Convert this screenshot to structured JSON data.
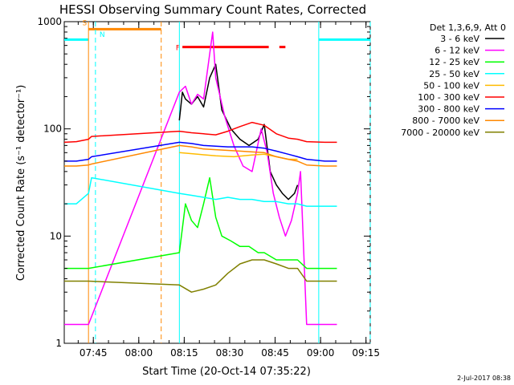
{
  "chart_data": {
    "type": "line",
    "title": "HESSI Observing Summary Count Rates, Corrected",
    "xlabel": "Start Time (20-Oct-14 07:35:22)",
    "ylabel": "Corrected Count Rate (s⁻¹ detector⁻¹)",
    "ylog": true,
    "ylim": [
      1,
      1000
    ],
    "xlim_minutes": [
      0,
      101
    ],
    "x_ticks": [
      {
        "label": "07:45",
        "min": 9.6
      },
      {
        "label": "08:00",
        "min": 24.6
      },
      {
        "label": "08:15",
        "min": 39.6
      },
      {
        "label": "08:30",
        "min": 54.6
      },
      {
        "label": "08:45",
        "min": 69.6
      },
      {
        "label": "09:00",
        "min": 84.6
      },
      {
        "label": "09:15",
        "min": 99.6
      }
    ],
    "y_ticks": [
      {
        "label": "1",
        "value": 1
      },
      {
        "label": "10",
        "value": 10
      },
      {
        "label": "100",
        "value": 100
      },
      {
        "label": "1000",
        "value": 1000
      }
    ],
    "legend_title": "Det 1,3,6,9, Att 0",
    "series": [
      {
        "name": "3 - 6 keV",
        "color": "#000000",
        "points": [
          [
            38,
            120
          ],
          [
            39,
            220
          ],
          [
            40,
            190
          ],
          [
            42,
            170
          ],
          [
            44,
            200
          ],
          [
            46,
            160
          ],
          [
            48,
            300
          ],
          [
            50,
            400
          ],
          [
            52,
            150
          ],
          [
            55,
            100
          ],
          [
            58,
            80
          ],
          [
            61,
            70
          ],
          [
            64,
            80
          ],
          [
            66,
            110
          ],
          [
            68,
            40
          ],
          [
            70,
            30
          ],
          [
            72,
            25
          ],
          [
            74,
            22
          ],
          [
            76,
            25
          ],
          [
            77,
            30
          ]
        ]
      },
      {
        "name": "6 - 12 keV",
        "color": "#ff00ff",
        "points": [
          [
            0,
            1.5
          ],
          [
            8,
            1.5
          ],
          [
            38,
            220
          ],
          [
            40,
            250
          ],
          [
            42,
            170
          ],
          [
            44,
            210
          ],
          [
            46,
            190
          ],
          [
            48,
            500
          ],
          [
            49,
            800
          ],
          [
            50,
            300
          ],
          [
            53,
            130
          ],
          [
            56,
            70
          ],
          [
            59,
            45
          ],
          [
            62,
            40
          ],
          [
            65,
            100
          ],
          [
            67,
            60
          ],
          [
            69,
            25
          ],
          [
            71,
            15
          ],
          [
            73,
            10
          ],
          [
            75,
            14
          ],
          [
            77,
            25
          ],
          [
            78,
            40
          ],
          [
            80,
            1.5
          ],
          [
            90,
            1.5
          ]
        ]
      },
      {
        "name": "12 - 25 keV",
        "color": "#00ff00",
        "points": [
          [
            0,
            5
          ],
          [
            8,
            5
          ],
          [
            38,
            7
          ],
          [
            40,
            20
          ],
          [
            42,
            14
          ],
          [
            44,
            12
          ],
          [
            46,
            20
          ],
          [
            48,
            35
          ],
          [
            50,
            15
          ],
          [
            52,
            10
          ],
          [
            55,
            9
          ],
          [
            58,
            8
          ],
          [
            61,
            8
          ],
          [
            64,
            7
          ],
          [
            66,
            7
          ],
          [
            70,
            6
          ],
          [
            74,
            6
          ],
          [
            77,
            6
          ],
          [
            80,
            5
          ],
          [
            90,
            5
          ]
        ]
      },
      {
        "name": "25 - 50 keV",
        "color": "#00ffff",
        "points": [
          [
            0,
            20
          ],
          [
            4,
            20
          ],
          [
            8,
            25
          ],
          [
            9,
            35
          ],
          [
            38,
            25
          ],
          [
            42,
            24
          ],
          [
            46,
            23
          ],
          [
            50,
            22
          ],
          [
            54,
            23
          ],
          [
            58,
            22
          ],
          [
            62,
            22
          ],
          [
            66,
            21
          ],
          [
            70,
            21
          ],
          [
            74,
            20
          ],
          [
            77,
            20
          ],
          [
            80,
            19
          ],
          [
            86,
            19
          ],
          [
            90,
            19
          ]
        ]
      },
      {
        "name": "50 - 100 keV",
        "color": "#ffbb00",
        "points": [
          [
            38,
            60
          ],
          [
            44,
            58
          ],
          [
            50,
            56
          ],
          [
            56,
            55
          ],
          [
            62,
            57
          ],
          [
            66,
            58
          ],
          [
            70,
            55
          ],
          [
            74,
            52
          ],
          [
            77,
            52
          ]
        ]
      },
      {
        "name": "100 - 300 keV",
        "color": "#ff0000",
        "points": [
          [
            0,
            75
          ],
          [
            4,
            76
          ],
          [
            8,
            80
          ],
          [
            9,
            85
          ],
          [
            38,
            95
          ],
          [
            42,
            92
          ],
          [
            46,
            90
          ],
          [
            50,
            88
          ],
          [
            54,
            95
          ],
          [
            58,
            105
          ],
          [
            62,
            115
          ],
          [
            66,
            108
          ],
          [
            70,
            90
          ],
          [
            74,
            82
          ],
          [
            77,
            80
          ],
          [
            80,
            76
          ],
          [
            86,
            75
          ],
          [
            90,
            75
          ]
        ]
      },
      {
        "name": "300 - 800 keV",
        "color": "#0000ff",
        "points": [
          [
            0,
            50
          ],
          [
            4,
            50
          ],
          [
            8,
            52
          ],
          [
            9,
            55
          ],
          [
            38,
            75
          ],
          [
            42,
            73
          ],
          [
            46,
            70
          ],
          [
            50,
            69
          ],
          [
            54,
            68
          ],
          [
            58,
            68
          ],
          [
            62,
            68
          ],
          [
            66,
            66
          ],
          [
            70,
            62
          ],
          [
            74,
            58
          ],
          [
            77,
            55
          ],
          [
            80,
            52
          ],
          [
            86,
            50
          ],
          [
            90,
            50
          ]
        ]
      },
      {
        "name": "800 - 7000 keV",
        "color": "#ff8800",
        "points": [
          [
            0,
            45
          ],
          [
            4,
            45
          ],
          [
            8,
            46
          ],
          [
            9,
            47
          ],
          [
            38,
            70
          ],
          [
            42,
            68
          ],
          [
            46,
            65
          ],
          [
            50,
            64
          ],
          [
            54,
            63
          ],
          [
            58,
            62
          ],
          [
            62,
            61
          ],
          [
            66,
            60
          ],
          [
            70,
            55
          ],
          [
            74,
            52
          ],
          [
            77,
            50
          ],
          [
            80,
            46
          ],
          [
            86,
            45
          ],
          [
            90,
            45
          ]
        ]
      },
      {
        "name": "7000 - 20000 keV",
        "color": "#808000",
        "points": [
          [
            0,
            3.8
          ],
          [
            8,
            3.8
          ],
          [
            38,
            3.5
          ],
          [
            42,
            3.0
          ],
          [
            46,
            3.2
          ],
          [
            50,
            3.5
          ],
          [
            54,
            4.5
          ],
          [
            58,
            5.5
          ],
          [
            62,
            6.0
          ],
          [
            66,
            6.0
          ],
          [
            70,
            5.5
          ],
          [
            74,
            5.0
          ],
          [
            77,
            5.0
          ],
          [
            80,
            3.8
          ],
          [
            90,
            3.8
          ]
        ]
      }
    ],
    "attenuator_bar": {
      "label": "F",
      "color": "#ff0000",
      "y": 580,
      "segments": [
        [
          39,
          67.5
        ],
        [
          71,
          73
        ]
      ]
    },
    "saa_bar": {
      "label": "S",
      "color": "#ff8800",
      "y": 850,
      "start": 8.0,
      "end": 32.0
    },
    "night_bars": [
      {
        "color": "#00ffff",
        "y": 680,
        "start": 0,
        "end": 8.0
      },
      {
        "color": "#00ffff",
        "y": 680,
        "start": 84.0,
        "end": 101
      }
    ],
    "markers": [
      {
        "label": "",
        "color": "#ff8800",
        "min": 8.0,
        "style": "solid"
      },
      {
        "label": "N",
        "color": "#00ffff",
        "min": 10.3,
        "style": "dashed"
      },
      {
        "label": "",
        "color": "#ff8800",
        "min": 32.0,
        "style": "dashed"
      },
      {
        "label": "",
        "color": "#00ffff",
        "min": 38.0,
        "style": "solid"
      },
      {
        "label": "",
        "color": "#00ffff",
        "min": 84.0,
        "style": "solid"
      },
      {
        "label": "",
        "color": "#00ffff",
        "min": 101.0,
        "style": "dashed"
      }
    ]
  },
  "footer": {
    "date": "2-Jul-2017 08:38"
  }
}
